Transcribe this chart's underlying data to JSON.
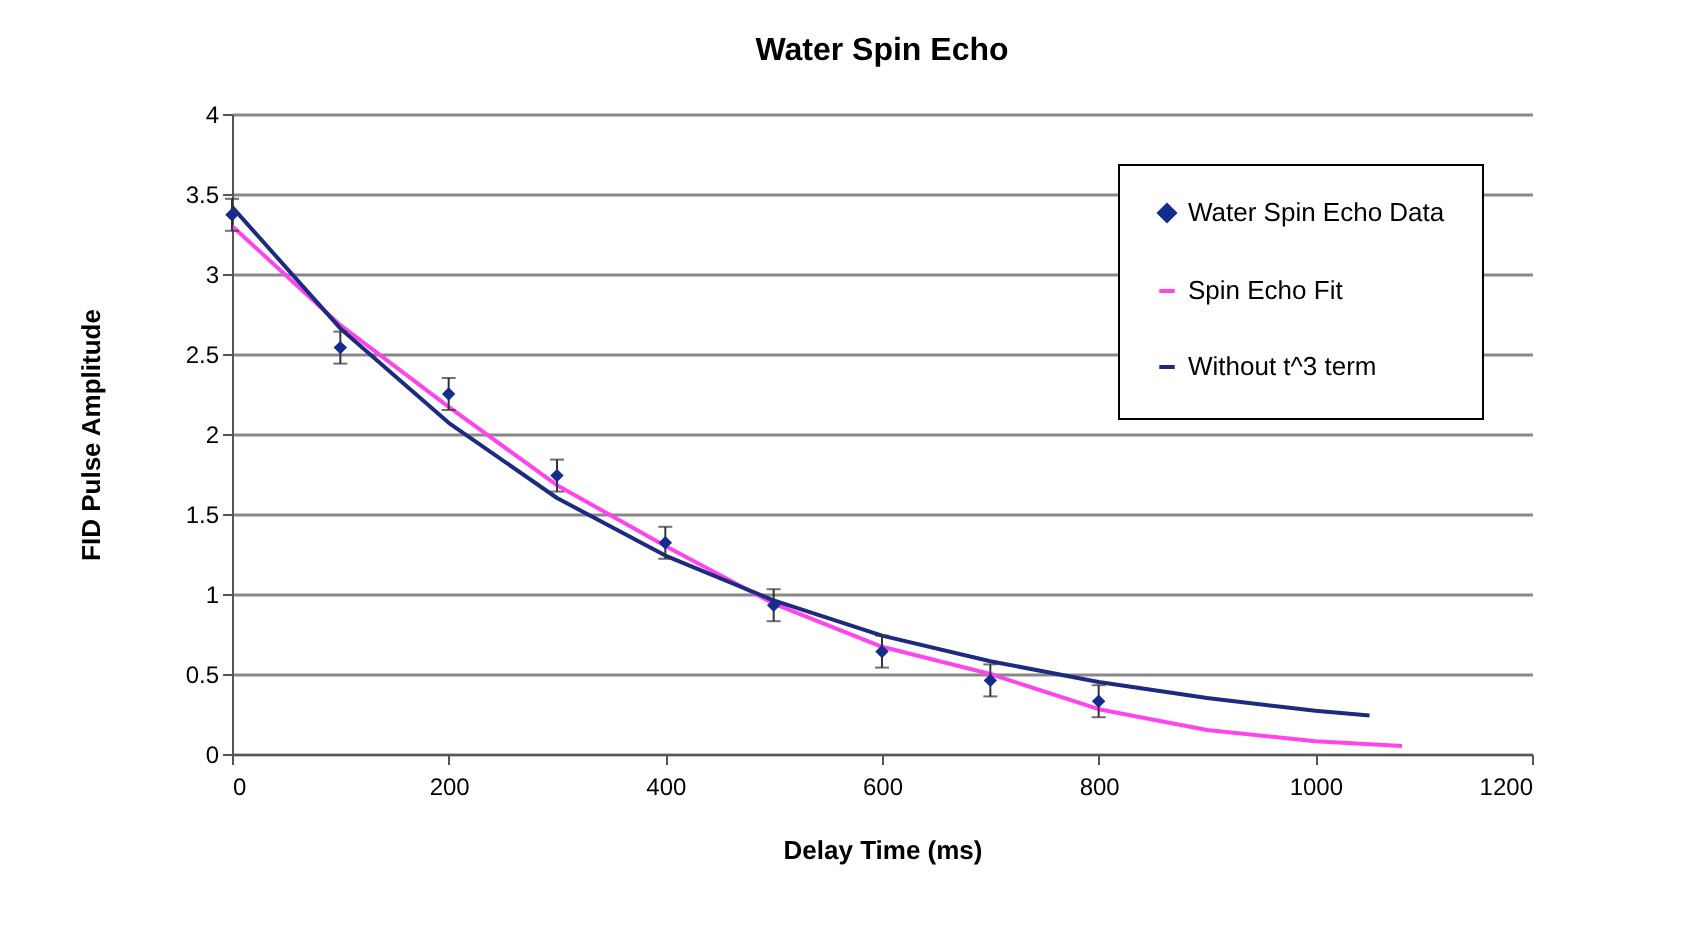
{
  "chart_data": {
    "type": "scatter",
    "title": "Water Spin Echo",
    "xlabel": "Delay Time (ms)",
    "ylabel": "FID Pulse Amplitude",
    "xlim": [
      0,
      1200
    ],
    "xticks": [
      0,
      200,
      400,
      600,
      800,
      1000,
      1200
    ],
    "ylim": [
      0,
      4
    ],
    "yticks": [
      0,
      0.5,
      1,
      1.5,
      2,
      2.5,
      3,
      3.5,
      4
    ],
    "grid": "y",
    "legend": "top right",
    "series": [
      {
        "name": "Water Spin Echo Data",
        "marker": "diamond",
        "color": "#142c8c",
        "x": [
          0,
          100,
          200,
          300,
          400,
          500,
          600,
          700,
          800
        ],
        "values": [
          3.37,
          2.54,
          2.25,
          1.74,
          1.32,
          0.93,
          0.64,
          0.46,
          0.33
        ],
        "errors": [
          0.1,
          0.1,
          0.1,
          0.1,
          0.1,
          0.1,
          0.1,
          0.1,
          0.1
        ]
      },
      {
        "name": "Spin Echo Fit",
        "type": "line",
        "color": "#ff44ee",
        "x": [
          0,
          100,
          200,
          300,
          400,
          500,
          600,
          700,
          800,
          900,
          1000,
          1080
        ],
        "values": [
          3.3,
          2.68,
          2.17,
          1.68,
          1.3,
          0.94,
          0.67,
          0.5,
          0.28,
          0.15,
          0.08,
          0.05
        ]
      },
      {
        "name": "Without t^3 term",
        "type": "line",
        "color": "#1c2a80",
        "x": [
          0,
          100,
          200,
          300,
          400,
          500,
          600,
          700,
          800,
          900,
          1000,
          1050
        ],
        "values": [
          3.42,
          2.66,
          2.07,
          1.6,
          1.24,
          0.96,
          0.74,
          0.58,
          0.45,
          0.35,
          0.27,
          0.24
        ]
      }
    ]
  }
}
